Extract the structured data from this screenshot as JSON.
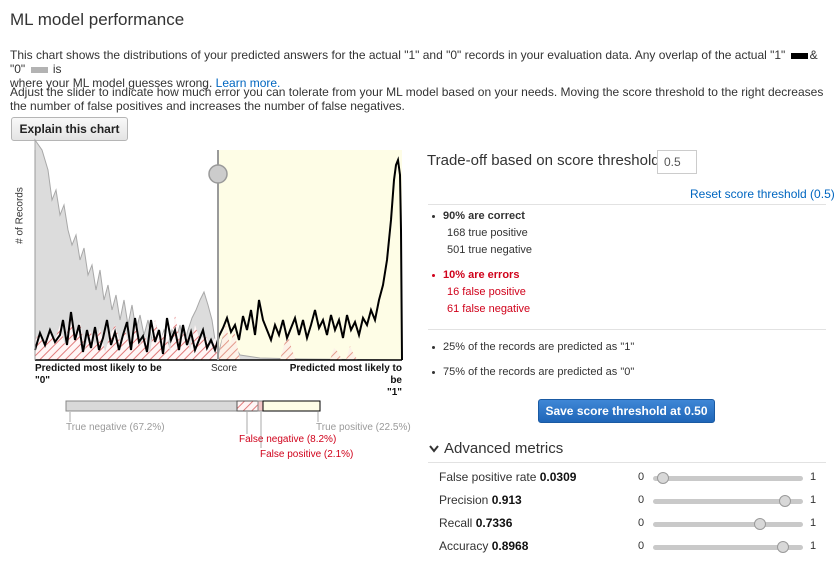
{
  "page": {
    "title": "ML model performance",
    "desc1_before": "This chart shows the distributions of your predicted answers for the actual \"1\" and \"0\" records in your evaluation data. Any overlap of the actual \"1\"",
    "desc1_amp": "& \"0\"",
    "desc1_is": "is",
    "desc1_line2": "where your ML model guesses wrong.",
    "learn_more": "Learn more.",
    "desc2": "Adjust the slider to indicate how much error you can tolerate from your ML model based on your needs. Moving the score threshold to the right decreases the number of false positives and increases the number of false negatives.",
    "explain_button": "Explain this chart",
    "colors": {
      "actual1": "#000000",
      "actual0": "#b3b3b3",
      "link": "#0066c0",
      "error": "#d0021b"
    }
  },
  "chart": {
    "y_label": "# of Records",
    "x_left_line1": "Predicted most likely to be",
    "x_left_line2": "\"0\"",
    "x_center": "Score",
    "x_right_line1": "Predicted most likely to be",
    "x_right_line2": "\"1\"",
    "threshold": 0.5
  },
  "breakdown": {
    "true_negative": "True negative (67.2%)",
    "false_negative": "False negative (8.2%)",
    "false_positive": "False positive (2.1%)",
    "true_positive": "True positive (22.5%)",
    "fractions": {
      "true_negative": 0.672,
      "false_negative": 0.082,
      "false_positive": 0.021,
      "true_positive": 0.225
    }
  },
  "tradeoff": {
    "title": "Trade-off based on score threshold",
    "threshold_value": "0.5",
    "reset_link": "Reset score threshold (0.5)",
    "correct_heading": "90% are correct",
    "true_positive": "168 true positive",
    "true_negative": "501 true negative",
    "errors_heading": "10% are errors",
    "false_positive": "16 false positive",
    "false_negative": "61 false negative",
    "predicted_1": "25% of the records are predicted as \"1\"",
    "predicted_0": "75% of the records are predicted as \"0\"",
    "save_button": "Save score threshold at 0.50"
  },
  "advanced": {
    "title": "Advanced metrics",
    "metrics": [
      {
        "label": "False positive rate",
        "value": "0.0309",
        "min": "0",
        "max": "1",
        "level": 0.0309
      },
      {
        "label": "Precision",
        "value": "0.913",
        "min": "0",
        "max": "1",
        "level": 0.913
      },
      {
        "label": "Recall",
        "value": "0.7336",
        "min": "0",
        "max": "1",
        "level": 0.7336
      },
      {
        "label": "Accuracy",
        "value": "0.8968",
        "min": "0",
        "max": "1",
        "level": 0.8968
      }
    ]
  }
}
